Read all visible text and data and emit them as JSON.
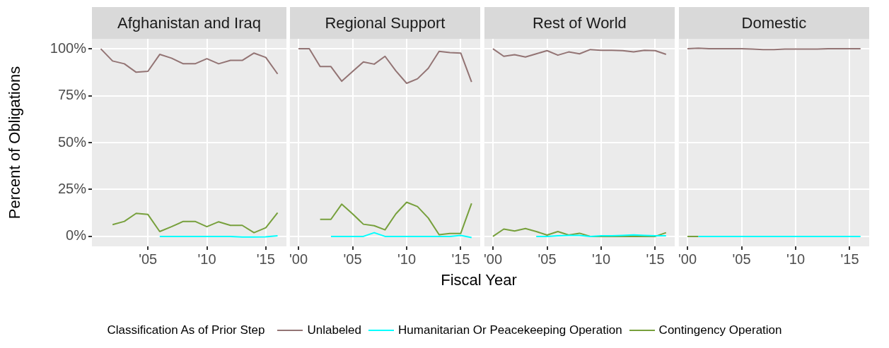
{
  "chart_data": [
    {
      "type": "line",
      "title": "Afghanistan and Iraq",
      "ylabel": "Percent of Obligations",
      "legend_title": "Classification As of Prior Step",
      "legend": "bottom",
      "grid": true,
      "xlim": [
        2000.25,
        2016.75
      ],
      "xticks": [
        {
          "value": 2005,
          "label": "'05"
        },
        {
          "value": 2010,
          "label": "'10"
        },
        {
          "value": 2015,
          "label": "'15"
        }
      ],
      "ylim": [
        -5.3,
        105.3
      ],
      "yticks": [
        {
          "value": 0,
          "label": "0%"
        },
        {
          "value": 25,
          "label": "25%"
        },
        {
          "value": 50,
          "label": "50%"
        },
        {
          "value": 75,
          "label": "75%"
        },
        {
          "value": 100,
          "label": "100%"
        }
      ],
      "series": [
        {
          "name": "Unlabeled",
          "color": "#937474",
          "x": [
            2001,
            2002,
            2003,
            2004,
            2005,
            2006,
            2007,
            2008,
            2009,
            2010,
            2011,
            2012,
            2013,
            2014,
            2015,
            2016
          ],
          "values": [
            100,
            93.5,
            92,
            87.5,
            88,
            97,
            95,
            92,
            92,
            94.7,
            92,
            93.8,
            93.8,
            97.7,
            95.4,
            86.6
          ]
        },
        {
          "name": "Humanitarian Or Peacekeeping Operation",
          "color": "#00ffff",
          "x": [
            2006,
            2007,
            2008,
            2009,
            2010,
            2011,
            2012,
            2013,
            2014,
            2015,
            2016
          ],
          "values": [
            0,
            0,
            0,
            0,
            0,
            0,
            0,
            -0.3,
            -0.3,
            -0.2,
            0.3
          ]
        },
        {
          "name": "Contingency Operation",
          "color": "#77a03c",
          "x": [
            2002,
            2003,
            2004,
            2005,
            2006,
            2007,
            2008,
            2009,
            2010,
            2011,
            2012,
            2013,
            2014,
            2015,
            2016
          ],
          "values": [
            6.3,
            8,
            12.3,
            11.7,
            2.6,
            5.2,
            8,
            8,
            5.2,
            7.8,
            5.9,
            5.9,
            2,
            4.6,
            12.6
          ]
        }
      ]
    },
    {
      "type": "line",
      "title": "Regional Support",
      "xlabel": "Fiscal Year",
      "grid": true,
      "tick_labels": "x",
      "xlim": [
        1999.2,
        2016.8
      ],
      "xticks": [
        {
          "value": 2000,
          "label": "'00"
        },
        {
          "value": 2005,
          "label": "'05"
        },
        {
          "value": 2010,
          "label": "'10"
        },
        {
          "value": 2015,
          "label": "'15"
        }
      ],
      "ylim": [
        -5.3,
        105.3
      ],
      "yticks": [
        0,
        25,
        50,
        75,
        100
      ],
      "series": [
        {
          "color": "#937474",
          "x": [
            2000,
            2001,
            2002,
            2003,
            2004,
            2005,
            2006,
            2007,
            2008,
            2009,
            2010,
            2011,
            2012,
            2013,
            2014,
            2015,
            2016
          ],
          "values": [
            100,
            100,
            90.5,
            90.5,
            82.7,
            87.9,
            93,
            91.8,
            96,
            88.2,
            81.6,
            84,
            89.6,
            98.6,
            98,
            97.7,
            82.3
          ]
        },
        {
          "color": "#00ffff",
          "x": [
            2003,
            2004,
            2005,
            2006,
            2007,
            2008,
            2009,
            2010,
            2011,
            2012,
            2013,
            2014,
            2015,
            2016
          ],
          "values": [
            0,
            0,
            0,
            0,
            2,
            0,
            0,
            0,
            0,
            0,
            0,
            0,
            0.5,
            -0.6
          ]
        },
        {
          "color": "#77a03c",
          "x": [
            2002,
            2003,
            2004,
            2005,
            2006,
            2007,
            2008,
            2009,
            2010,
            2011,
            2012,
            2013,
            2014,
            2015,
            2016
          ],
          "values": [
            9.1,
            9.1,
            17.2,
            12,
            6.5,
            5.7,
            3.5,
            12,
            18.2,
            15.9,
            9.8,
            0.9,
            1.6,
            1.6,
            17.6
          ]
        }
      ]
    },
    {
      "type": "line",
      "title": "Rest of World",
      "grid": true,
      "tick_labels": "x",
      "xlim": [
        1999.2,
        2016.8
      ],
      "xticks": [
        {
          "value": 2000,
          "label": "'00"
        },
        {
          "value": 2005,
          "label": "'05"
        },
        {
          "value": 2010,
          "label": "'10"
        },
        {
          "value": 2015,
          "label": "'15"
        }
      ],
      "ylim": [
        -5.3,
        105.3
      ],
      "yticks": [
        0,
        25,
        50,
        75,
        100
      ],
      "series": [
        {
          "color": "#937474",
          "x": [
            2000,
            2001,
            2002,
            2003,
            2004,
            2005,
            2006,
            2007,
            2008,
            2009,
            2010,
            2011,
            2012,
            2013,
            2014,
            2015,
            2016
          ],
          "values": [
            100,
            96,
            96.8,
            95.6,
            97.3,
            99,
            96.6,
            98.3,
            97.3,
            99.6,
            99.2,
            99.2,
            99,
            98.3,
            99.2,
            99,
            97
          ]
        },
        {
          "color": "#00ffff",
          "x": [
            2004,
            2005,
            2006,
            2007,
            2008,
            2009,
            2010,
            2011,
            2012,
            2013,
            2014,
            2015,
            2016
          ],
          "values": [
            0,
            0,
            0.3,
            0.5,
            0.5,
            0,
            0.3,
            0.3,
            0.5,
            0.8,
            0.5,
            0.3,
            0.3
          ]
        },
        {
          "color": "#77a03c",
          "x": [
            2000,
            2001,
            2002,
            2003,
            2004,
            2005,
            2006,
            2007,
            2008,
            2009,
            2010,
            2011,
            2012,
            2013,
            2014,
            2015,
            2016
          ],
          "values": [
            0,
            3.9,
            2.9,
            4.2,
            2.6,
            0.7,
            2.6,
            0.7,
            1.7,
            0,
            0,
            0,
            0,
            0,
            0,
            0,
            2
          ]
        }
      ]
    },
    {
      "type": "line",
      "title": "Domestic",
      "grid": true,
      "tick_labels": "x",
      "xlim": [
        1999.2,
        2016.8
      ],
      "xticks": [
        {
          "value": 2000,
          "label": "'00"
        },
        {
          "value": 2005,
          "label": "'05"
        },
        {
          "value": 2010,
          "label": "'10"
        },
        {
          "value": 2015,
          "label": "'15"
        }
      ],
      "ylim": [
        -5.3,
        105.3
      ],
      "yticks": [
        0,
        25,
        50,
        75,
        100
      ],
      "series": [
        {
          "color": "#937474",
          "x": [
            2000,
            2001,
            2002,
            2003,
            2004,
            2005,
            2006,
            2007,
            2008,
            2009,
            2010,
            2011,
            2012,
            2013,
            2014,
            2015,
            2016
          ],
          "values": [
            100,
            100.3,
            100,
            100,
            100,
            100,
            99.8,
            99.6,
            99.6,
            99.8,
            99.8,
            99.8,
            99.8,
            100,
            100,
            100,
            100
          ]
        },
        {
          "color": "#77a03c",
          "x": [
            2000,
            2001
          ],
          "values": [
            0,
            0
          ]
        },
        {
          "color": "#00ffff",
          "x": [
            2001,
            2002,
            2003,
            2004,
            2005,
            2006,
            2007,
            2008,
            2009,
            2010,
            2011,
            2012,
            2013,
            2014,
            2015,
            2016
          ],
          "values": [
            0,
            0,
            0,
            0,
            0,
            0,
            0,
            0,
            0,
            0,
            0,
            0,
            0,
            0,
            0,
            0
          ]
        }
      ]
    }
  ]
}
